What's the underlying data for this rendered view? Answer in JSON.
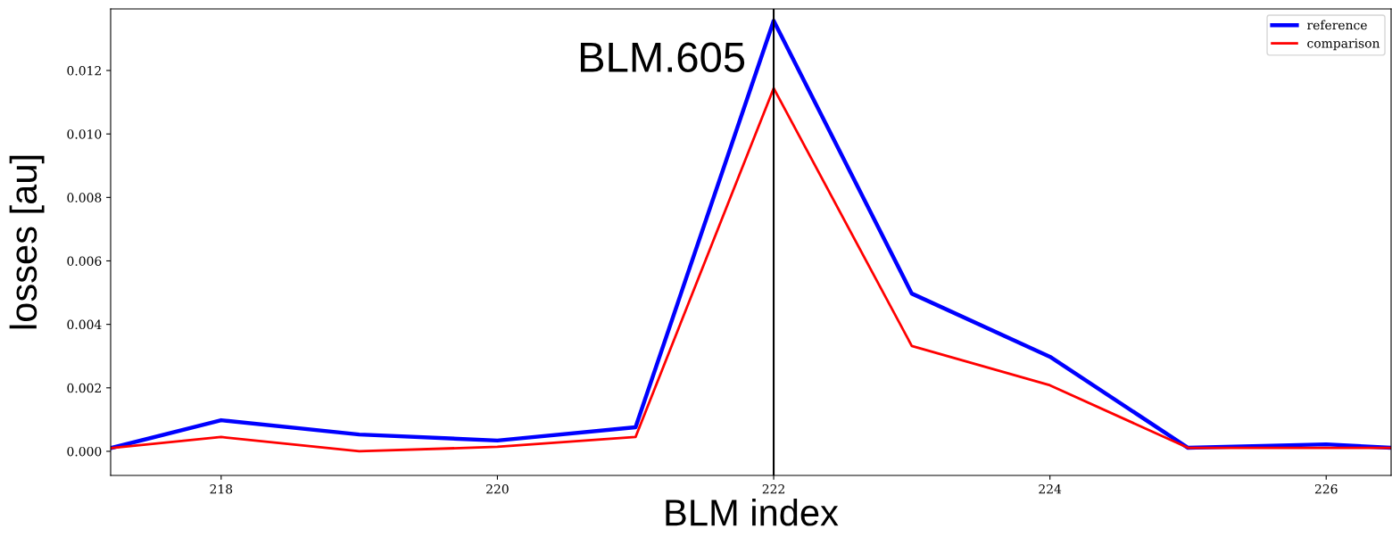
{
  "chart_data": {
    "type": "line",
    "xlabel": "BLM index",
    "ylabel": "losses [au]",
    "x": [
      217.2,
      218,
      219,
      220,
      221,
      222,
      223,
      224,
      225,
      226,
      226.47
    ],
    "series": [
      {
        "name": "reference",
        "color": "#0000ff",
        "values": [
          0.0001,
          0.00098,
          0.00053,
          0.00034,
          0.00076,
          0.01357,
          0.00497,
          0.00298,
          0.00011,
          0.00022,
          0.00011
        ]
      },
      {
        "name": "comparison",
        "color": "#ff0000",
        "values": [
          0.0001,
          0.00045,
          0.0,
          0.00014,
          0.00045,
          0.01144,
          0.00332,
          0.00208,
          0.00011,
          0.00011,
          0.00011
        ]
      }
    ],
    "xlim": [
      217.2,
      226.47
    ],
    "ylim": [
      -0.00076,
      0.01394
    ],
    "xticks": [
      218,
      220,
      222,
      224,
      226
    ],
    "yticks": [
      {
        "value": 0,
        "label": "0.000"
      },
      {
        "value": 0.002,
        "label": "0.002"
      },
      {
        "value": 0.004,
        "label": "0.004"
      },
      {
        "value": 0.006,
        "label": "0.006"
      },
      {
        "value": 0.008,
        "label": "0.008"
      },
      {
        "value": 0.01,
        "label": "0.010"
      },
      {
        "value": 0.012,
        "label": "0.012"
      }
    ],
    "ref_lines": [
      {
        "axis": "x",
        "value": 222,
        "label": "BLM.605",
        "color": "#000000"
      }
    ],
    "legend": "top right",
    "grid": false,
    "marker": "none",
    "line_style": "solid"
  }
}
